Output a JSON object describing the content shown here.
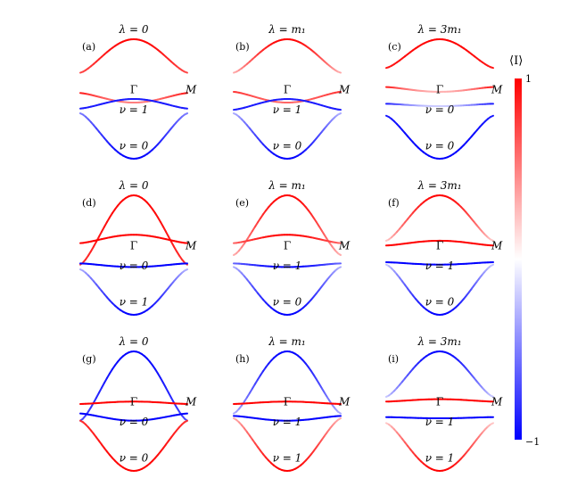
{
  "colorbar": {
    "label": "⟨I⟩",
    "max_label": "1",
    "min_label": "−1",
    "range": [
      -1,
      1
    ],
    "colors": {
      "low": "#0000ff",
      "mid": "#ffffff",
      "high": "#ff0000"
    }
  },
  "chart_data": [
    {
      "type": "line",
      "panel": "(a)",
      "title": "λ = 0",
      "x_labels": {
        "center": "Γ",
        "edge": "M"
      },
      "band_labels": [
        {
          "text": "ν = 1"
        },
        {
          "text": "ν = 0"
        }
      ],
      "series": [
        {
          "role": "top",
          "edge_y": 0.72,
          "peak_y": 1.0,
          "color_center": 1.0,
          "color_edge": 0.7
        },
        {
          "role": "mid-upper",
          "edge_y": 0.55,
          "peak_y": 0.47,
          "color_center": 0.5,
          "color_edge": 0.9
        },
        {
          "role": "mid-lower",
          "edge_y": 0.42,
          "peak_y": 0.5,
          "color_center": -0.9,
          "color_edge": -0.9
        },
        {
          "role": "bottom",
          "edge_y": 0.38,
          "peak_y": 0.0,
          "color_center": -1.0,
          "color_edge": -0.5
        }
      ]
    },
    {
      "type": "line",
      "panel": "(b)",
      "title": "λ = m₁",
      "x_labels": {
        "center": "Γ",
        "edge": "M"
      },
      "band_labels": [
        {
          "text": "ν = 1"
        },
        {
          "text": "ν = 0"
        }
      ],
      "series": [
        {
          "role": "top",
          "edge_y": 0.72,
          "peak_y": 1.0,
          "color_center": 1.0,
          "color_edge": 0.3
        },
        {
          "role": "mid-upper",
          "edge_y": 0.56,
          "peak_y": 0.47,
          "color_center": 0.6,
          "color_edge": 0.8
        },
        {
          "role": "mid-lower",
          "edge_y": 0.41,
          "peak_y": 0.5,
          "color_center": -0.9,
          "color_edge": -0.9
        },
        {
          "role": "bottom",
          "edge_y": 0.38,
          "peak_y": 0.0,
          "color_center": -1.0,
          "color_edge": -0.3
        }
      ]
    },
    {
      "type": "line",
      "panel": "(c)",
      "title": "λ = 3m₁",
      "x_labels": {
        "center": "Γ",
        "edge": "M"
      },
      "band_labels": [
        {
          "text": "ν = 0"
        },
        {
          "text": "ν = 0"
        }
      ],
      "series": [
        {
          "role": "top",
          "edge_y": 0.76,
          "peak_y": 1.0,
          "color_center": 1.0,
          "color_edge": 0.9
        },
        {
          "role": "mid-upper",
          "edge_y": 0.6,
          "peak_y": 0.56,
          "color_center": 0.3,
          "color_edge": 0.9
        },
        {
          "role": "mid-lower",
          "edge_y": 0.46,
          "peak_y": 0.44,
          "color_center": -0.2,
          "color_edge": -0.9
        },
        {
          "role": "bottom",
          "edge_y": 0.36,
          "peak_y": 0.0,
          "color_center": -1.0,
          "color_edge": -0.9
        }
      ]
    },
    {
      "type": "line",
      "panel": "(d)",
      "title": "λ = 0",
      "x_labels": {
        "center": "Γ",
        "edge": "M"
      },
      "band_labels": [
        {
          "text": "ν = 0"
        },
        {
          "text": "ν = 1"
        }
      ],
      "series": [
        {
          "role": "top",
          "edge_y": 0.42,
          "peak_y": 1.0,
          "color_center": 1.0,
          "color_edge": 0.8
        },
        {
          "role": "mid-upper",
          "edge_y": 0.6,
          "peak_y": 0.67,
          "color_center": 1.0,
          "color_edge": 1.0
        },
        {
          "role": "mid-lower",
          "edge_y": 0.43,
          "peak_y": 0.4,
          "color_center": -1.0,
          "color_edge": -1.0
        },
        {
          "role": "bottom",
          "edge_y": 0.38,
          "peak_y": 0.0,
          "color_center": -1.0,
          "color_edge": -0.3
        }
      ]
    },
    {
      "type": "line",
      "panel": "(e)",
      "title": "λ = m₁",
      "x_labels": {
        "center": "Γ",
        "edge": "M"
      },
      "band_labels": [
        {
          "text": "ν = 1"
        },
        {
          "text": "ν = 0"
        }
      ],
      "series": [
        {
          "role": "top",
          "edge_y": 0.5,
          "peak_y": 1.0,
          "color_center": 1.0,
          "color_edge": 0.3
        },
        {
          "role": "mid-upper",
          "edge_y": 0.6,
          "peak_y": 0.67,
          "color_center": 1.0,
          "color_edge": 0.6
        },
        {
          "role": "mid-lower",
          "edge_y": 0.43,
          "peak_y": 0.4,
          "color_center": -1.0,
          "color_edge": -0.6
        },
        {
          "role": "bottom",
          "edge_y": 0.4,
          "peak_y": 0.0,
          "color_center": -1.0,
          "color_edge": -0.3
        }
      ]
    },
    {
      "type": "line",
      "panel": "(f)",
      "title": "λ = 3m₁",
      "x_labels": {
        "center": "Γ",
        "edge": "M"
      },
      "band_labels": [
        {
          "text": "ν = 1"
        },
        {
          "text": "ν = 0"
        }
      ],
      "series": [
        {
          "role": "top",
          "edge_y": 0.62,
          "peak_y": 1.0,
          "color_center": 1.0,
          "color_edge": 0.2
        },
        {
          "role": "mid-upper",
          "edge_y": 0.58,
          "peak_y": 0.62,
          "color_center": 1.0,
          "color_edge": 1.0
        },
        {
          "role": "mid-lower",
          "edge_y": 0.44,
          "peak_y": 0.42,
          "color_center": -1.0,
          "color_edge": -1.0
        },
        {
          "role": "bottom",
          "edge_y": 0.42,
          "peak_y": 0.0,
          "color_center": -1.0,
          "color_edge": -0.2
        }
      ]
    },
    {
      "type": "line",
      "panel": "(g)",
      "title": "λ = 0",
      "x_labels": {
        "center": "Γ",
        "edge": "M"
      },
      "band_labels": [
        {
          "text": "ν = 0"
        },
        {
          "text": "ν = 0"
        }
      ],
      "series": [
        {
          "role": "top",
          "edge_y": 0.42,
          "peak_y": 1.0,
          "color_center": -1.0,
          "color_edge": -0.7
        },
        {
          "role": "mid-upper",
          "edge_y": 0.56,
          "peak_y": 0.58,
          "color_center": 1.0,
          "color_edge": 1.0
        },
        {
          "role": "mid-lower",
          "edge_y": 0.48,
          "peak_y": 0.42,
          "color_center": -1.0,
          "color_edge": -1.0
        },
        {
          "role": "bottom",
          "edge_y": 0.42,
          "peak_y": 0.0,
          "color_center": 1.0,
          "color_edge": 0.8
        }
      ]
    },
    {
      "type": "line",
      "panel": "(h)",
      "title": "λ = m₁",
      "x_labels": {
        "center": "Γ",
        "edge": "M"
      },
      "band_labels": [
        {
          "text": "ν = 1"
        },
        {
          "text": "ν = 1"
        }
      ],
      "series": [
        {
          "role": "top",
          "edge_y": 0.48,
          "peak_y": 1.0,
          "color_center": -1.0,
          "color_edge": -0.3
        },
        {
          "role": "mid-upper",
          "edge_y": 0.56,
          "peak_y": 0.58,
          "color_center": 1.0,
          "color_edge": 1.0
        },
        {
          "role": "mid-lower",
          "edge_y": 0.46,
          "peak_y": 0.42,
          "color_center": -1.0,
          "color_edge": -1.0
        },
        {
          "role": "bottom",
          "edge_y": 0.44,
          "peak_y": 0.0,
          "color_center": 1.0,
          "color_edge": 0.3
        }
      ]
    },
    {
      "type": "line",
      "panel": "(i)",
      "title": "λ = 3m₁",
      "x_labels": {
        "center": "Γ",
        "edge": "M"
      },
      "band_labels": [
        {
          "text": "ν = 1"
        },
        {
          "text": "ν = 1"
        }
      ],
      "series": [
        {
          "role": "top",
          "edge_y": 0.62,
          "peak_y": 1.0,
          "color_center": -1.0,
          "color_edge": -0.2
        },
        {
          "role": "mid-upper",
          "edge_y": 0.58,
          "peak_y": 0.6,
          "color_center": 1.0,
          "color_edge": 1.0
        },
        {
          "role": "mid-lower",
          "edge_y": 0.45,
          "peak_y": 0.44,
          "color_center": -1.0,
          "color_edge": -1.0
        },
        {
          "role": "bottom",
          "edge_y": 0.4,
          "peak_y": 0.0,
          "color_center": 1.0,
          "color_edge": 0.2
        }
      ]
    }
  ]
}
